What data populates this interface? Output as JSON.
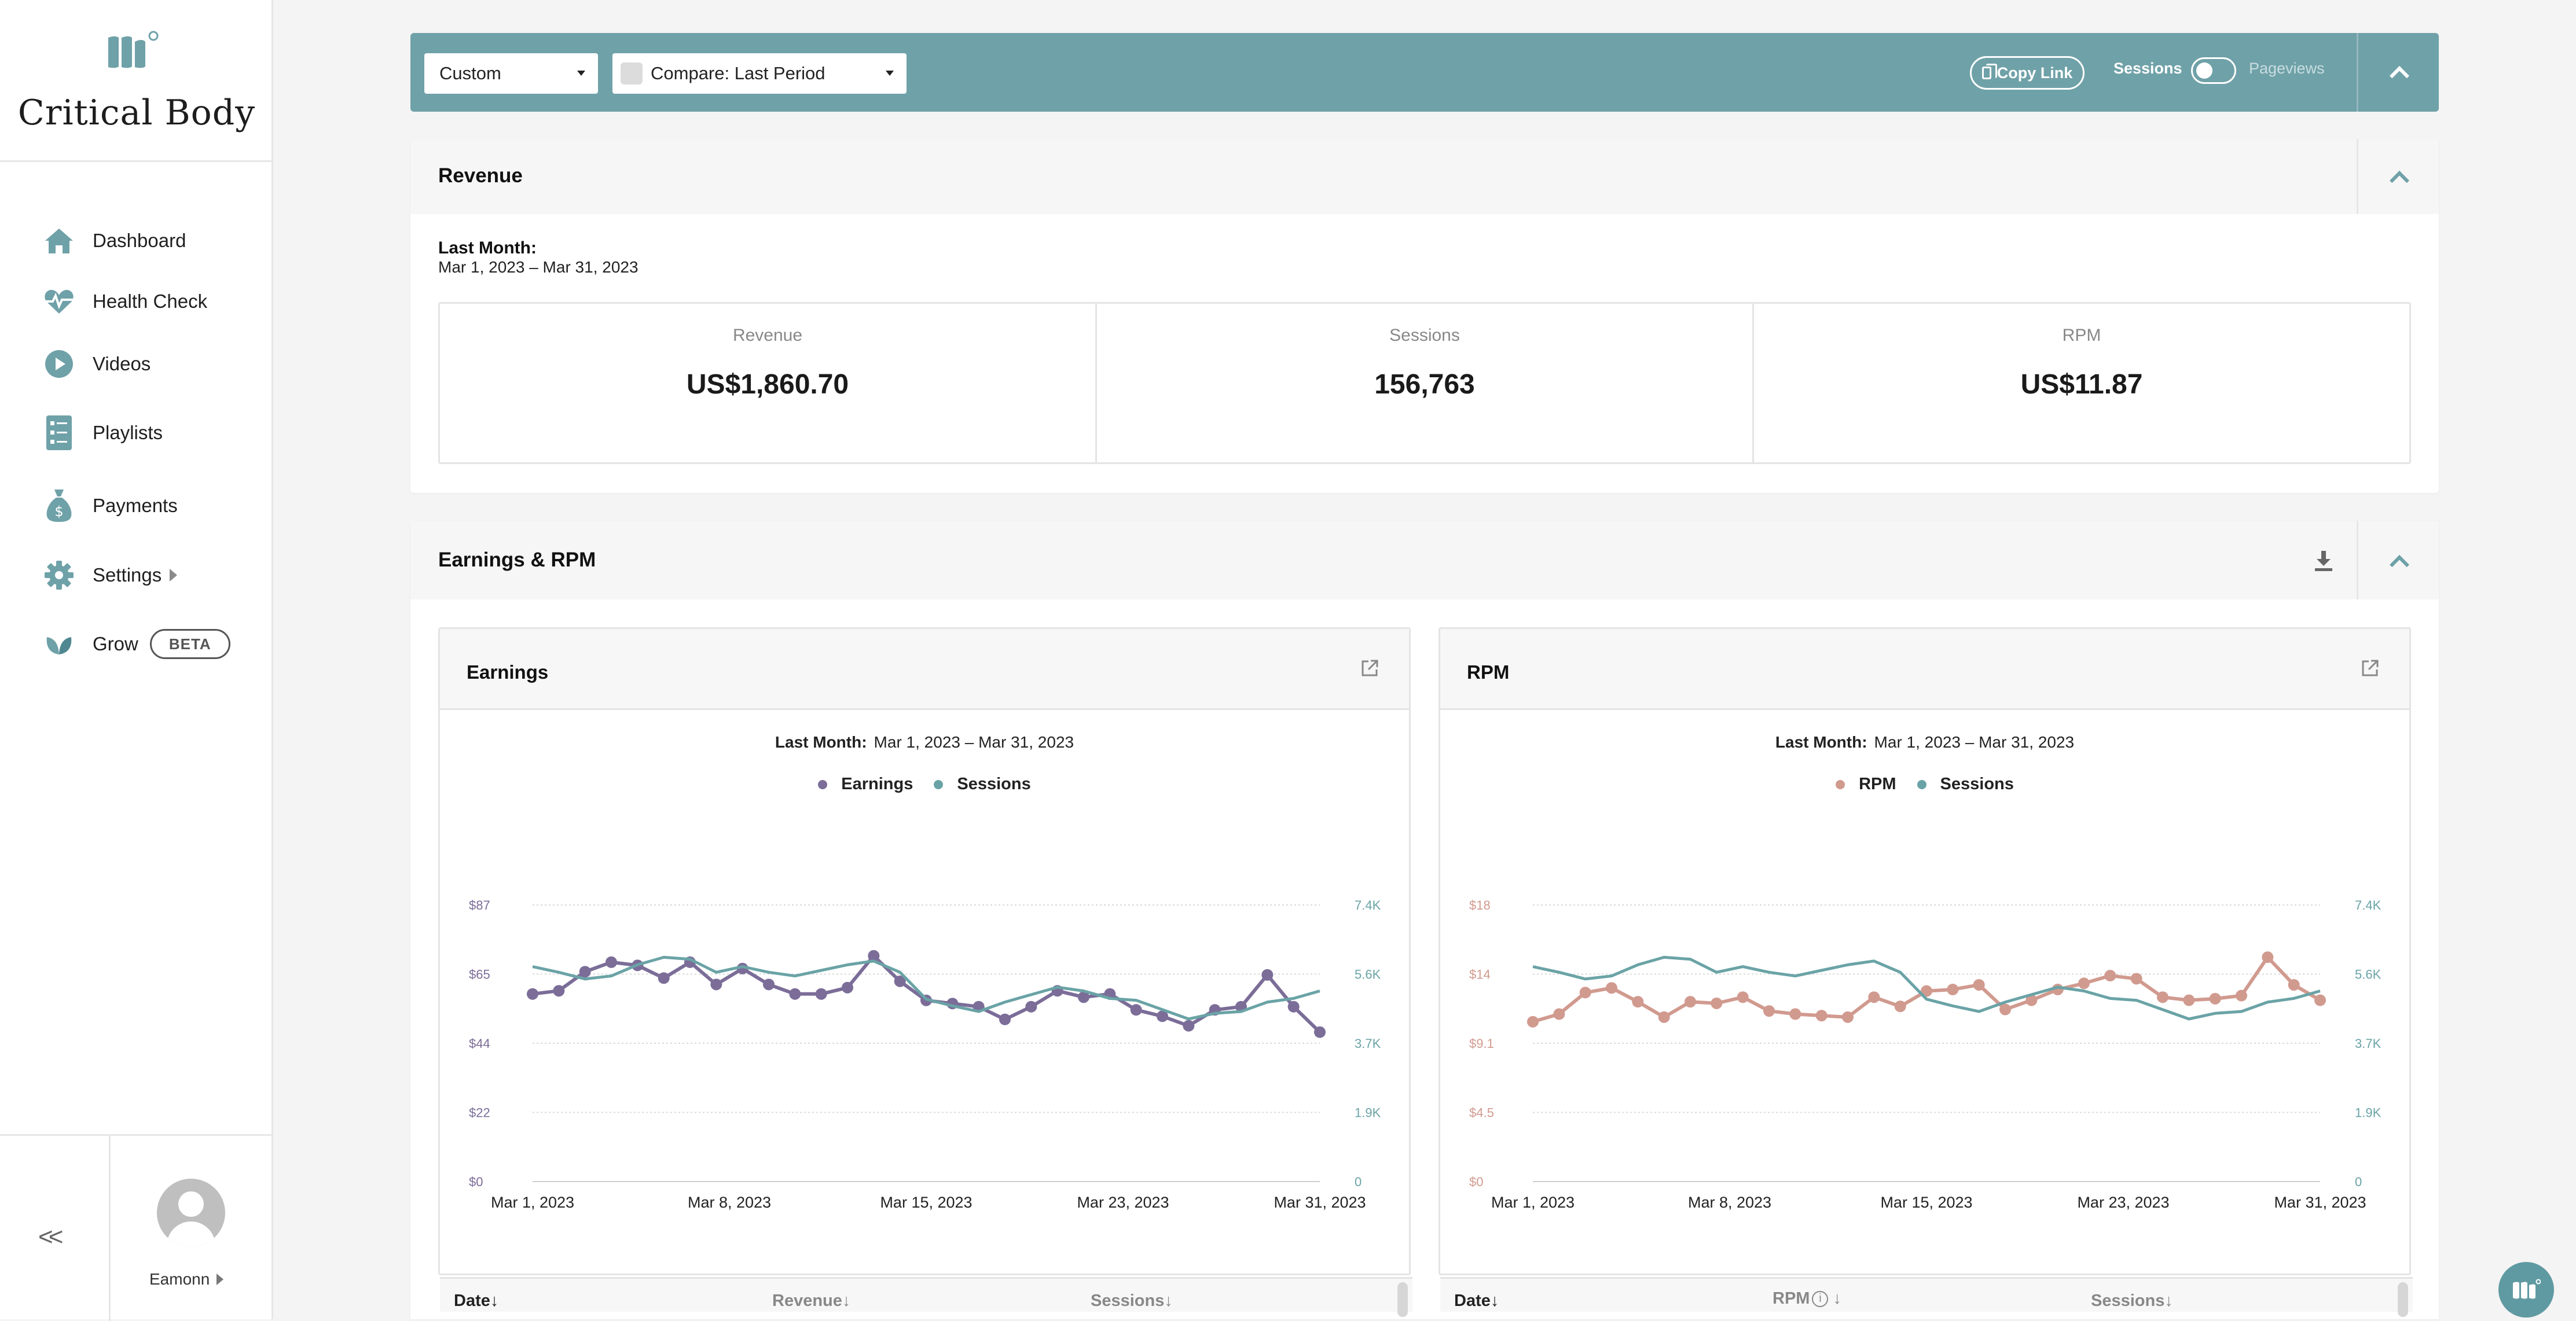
{
  "app": {
    "name": "Critical Body"
  },
  "sidebar": {
    "items": [
      {
        "label": "Dashboard",
        "icon": "home-icon"
      },
      {
        "label": "Health Check",
        "icon": "heartbeat-icon"
      },
      {
        "label": "Videos",
        "icon": "play-icon"
      },
      {
        "label": "Playlists",
        "icon": "playlist-icon"
      },
      {
        "label": "Payments",
        "icon": "money-bag-icon"
      },
      {
        "label": "Settings",
        "icon": "gear-icon"
      },
      {
        "label": "Grow",
        "icon": "leaf-icon",
        "badge": "BETA"
      }
    ],
    "collapse": "<<",
    "user": {
      "name": "Eamonn"
    }
  },
  "filters": {
    "range": "Custom",
    "compare": "Compare: Last Period",
    "copy_link": "Copy Link",
    "toggle_left": "Sessions",
    "toggle_right": "Pageviews",
    "toggle_state": "Sessions"
  },
  "revenue": {
    "title": "Revenue",
    "period_label": "Last Month:",
    "period_range": "Mar 1, 2023 – Mar 31, 2023",
    "stats": [
      {
        "title": "Revenue",
        "value": "US$1,860.70"
      },
      {
        "title": "Sessions",
        "value": "156,763"
      },
      {
        "title": "RPM",
        "value": "US$11.87"
      }
    ]
  },
  "earnings_section": {
    "title": "Earnings & RPM"
  },
  "colors": {
    "teal": "#6fa1a8",
    "earnings": "#7b6d98",
    "rpm": "#d19a8f",
    "sessions": "#6aa3a6"
  },
  "chart_data": [
    {
      "type": "line",
      "title": "Earnings",
      "period_label": "Last Month:",
      "period_range": "Mar 1, 2023 – Mar 31, 2023",
      "x_ticks": [
        "Mar 1, 2023",
        "Mar 8, 2023",
        "Mar 15, 2023",
        "Mar 23, 2023",
        "Mar 31, 2023"
      ],
      "y_ticks_left": [
        "$0",
        "$22",
        "$44",
        "$65",
        "$87"
      ],
      "y_ticks_right": [
        "0",
        "1.9K",
        "3.7K",
        "5.6K",
        "7.4K"
      ],
      "ylim_left": [
        0,
        87
      ],
      "ylim_right": [
        0,
        7400
      ],
      "grid": true,
      "legend_position": "top-center",
      "series": [
        {
          "name": "Earnings",
          "axis": "left",
          "markers": true,
          "values": [
            59,
            60,
            66,
            69,
            68,
            64,
            69,
            62,
            67,
            62,
            59,
            59,
            61,
            71,
            63,
            57,
            56,
            55,
            51,
            55,
            60,
            58,
            59,
            54,
            52,
            49,
            54,
            55,
            65,
            55,
            47
          ]
        },
        {
          "name": "Sessions",
          "axis": "right",
          "markers": false,
          "values": [
            5750,
            5600,
            5420,
            5500,
            5800,
            6000,
            5950,
            5600,
            5750,
            5600,
            5500,
            5650,
            5800,
            5900,
            5600,
            4880,
            4700,
            4550,
            4800,
            5000,
            5200,
            5100,
            4900,
            4850,
            4600,
            4350,
            4500,
            4550,
            4800,
            4900,
            5100
          ]
        }
      ]
    },
    {
      "type": "line",
      "title": "RPM",
      "period_label": "Last Month:",
      "period_range": "Mar 1, 2023 – Mar 31, 2023",
      "x_ticks": [
        "Mar 1, 2023",
        "Mar 8, 2023",
        "Mar 15, 2023",
        "Mar 23, 2023",
        "Mar 31, 2023"
      ],
      "y_ticks_left": [
        "$0",
        "$4.5",
        "$9.1",
        "$14",
        "$18"
      ],
      "y_ticks_right": [
        "0",
        "1.9K",
        "3.7K",
        "5.6K",
        "7.4K"
      ],
      "ylim_left": [
        0,
        18
      ],
      "ylim_right": [
        0,
        7400
      ],
      "grid": true,
      "legend_position": "top-center",
      "series": [
        {
          "name": "RPM",
          "axis": "left",
          "markers": true,
          "values": [
            10.4,
            10.9,
            12.3,
            12.6,
            11.7,
            10.7,
            11.7,
            11.6,
            12.0,
            11.1,
            10.9,
            10.8,
            10.7,
            12.0,
            11.4,
            12.4,
            12.5,
            12.8,
            11.2,
            11.8,
            12.5,
            12.9,
            13.4,
            13.2,
            12.0,
            11.8,
            11.9,
            12.1,
            14.6,
            12.8,
            11.8
          ]
        },
        {
          "name": "Sessions",
          "axis": "right",
          "markers": false,
          "values": [
            5750,
            5600,
            5420,
            5500,
            5800,
            6000,
            5950,
            5600,
            5750,
            5600,
            5500,
            5650,
            5800,
            5900,
            5600,
            4880,
            4700,
            4550,
            4800,
            5000,
            5200,
            5100,
            4900,
            4850,
            4600,
            4350,
            4500,
            4550,
            4800,
            4900,
            5100
          ]
        }
      ]
    }
  ],
  "tables": {
    "earnings": {
      "headers": [
        "Date↓",
        "Revenue↓",
        "Sessions↓"
      ]
    },
    "rpm": {
      "headers": [
        "Date↓",
        "RPM",
        "↓",
        "Sessions↓"
      ]
    }
  }
}
